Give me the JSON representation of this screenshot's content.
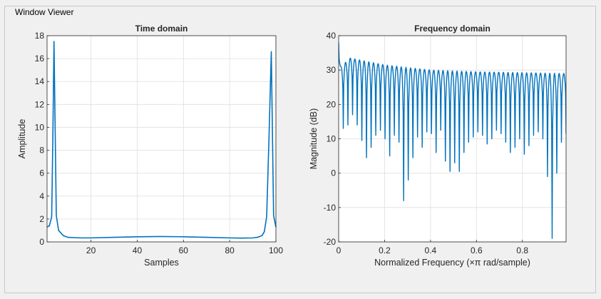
{
  "window": {
    "title": "Window Viewer"
  },
  "colors": {
    "line": "#0072bd",
    "grid": "#dfdfdf",
    "axis": "#262626",
    "background": "#f0f0f0",
    "plot_bg": "#ffffff"
  },
  "chart_data": [
    {
      "type": "line",
      "title": "Time domain",
      "xlabel": "Samples",
      "ylabel": "Amplitude",
      "xlim": [
        1,
        100
      ],
      "ylim": [
        0,
        18
      ],
      "xticks": [
        20,
        40,
        60,
        80,
        100
      ],
      "yticks": [
        0,
        2,
        4,
        6,
        8,
        10,
        12,
        14,
        16,
        18
      ],
      "xtick_labels": [
        "20",
        "40",
        "60",
        "80",
        "100"
      ],
      "ytick_labels": [
        "0",
        "2",
        "4",
        "6",
        "8",
        "10",
        "12",
        "14",
        "16",
        "18"
      ],
      "grid": true,
      "series": [
        {
          "x": [
            1,
            2,
            3,
            3.5,
            4,
            5,
            6,
            8,
            10,
            15,
            20,
            30,
            40,
            50,
            60,
            70,
            80,
            85,
            90,
            92,
            94,
            95,
            96,
            97,
            98,
            99,
            100
          ],
          "values": [
            1.3,
            1.4,
            2.2,
            9.0,
            17.5,
            2.3,
            1.0,
            0.55,
            0.4,
            0.35,
            0.35,
            0.4,
            0.45,
            0.47,
            0.45,
            0.4,
            0.35,
            0.33,
            0.35,
            0.4,
            0.55,
            0.9,
            2.2,
            9.0,
            16.6,
            2.3,
            1.3
          ]
        }
      ]
    },
    {
      "type": "line",
      "title": "Frequency domain",
      "xlabel": "Normalized Frequency  (×π rad/sample)",
      "ylabel": "Magnitude (dB)",
      "xlim": [
        0,
        0.99
      ],
      "ylim": [
        -20,
        40
      ],
      "xticks": [
        0,
        0.2,
        0.4,
        0.6,
        0.8
      ],
      "yticks": [
        -20,
        -10,
        0,
        10,
        20,
        30,
        40
      ],
      "xtick_labels": [
        "0",
        "0.2",
        "0.4",
        "0.6",
        "0.8"
      ],
      "ytick_labels": [
        "-20",
        "-10",
        "0",
        "10",
        "20",
        "30",
        "40"
      ],
      "grid": true,
      "lobe_count": 49,
      "peak_envelope": {
        "x": [
          0,
          0.01,
          0.05,
          0.2,
          0.4,
          0.6,
          0.99
        ],
        "values": [
          38,
          31,
          33.5,
          31.5,
          30,
          29.5,
          29
        ]
      },
      "null_depths": [
        13,
        14,
        17,
        14,
        9.5,
        4.5,
        7.5,
        11,
        12.5,
        10,
        5,
        11,
        9,
        -8,
        -2,
        4.5,
        10.5,
        7.5,
        12,
        11.5,
        6,
        12.5,
        3.5,
        0.5,
        3,
        0.5,
        6,
        9,
        10.5,
        12,
        11,
        8.5,
        10,
        12.5,
        11.5,
        9,
        6,
        7.5,
        10,
        5.5,
        8,
        11,
        12,
        10,
        -1,
        -19,
        0,
        9,
        11.5
      ]
    }
  ]
}
